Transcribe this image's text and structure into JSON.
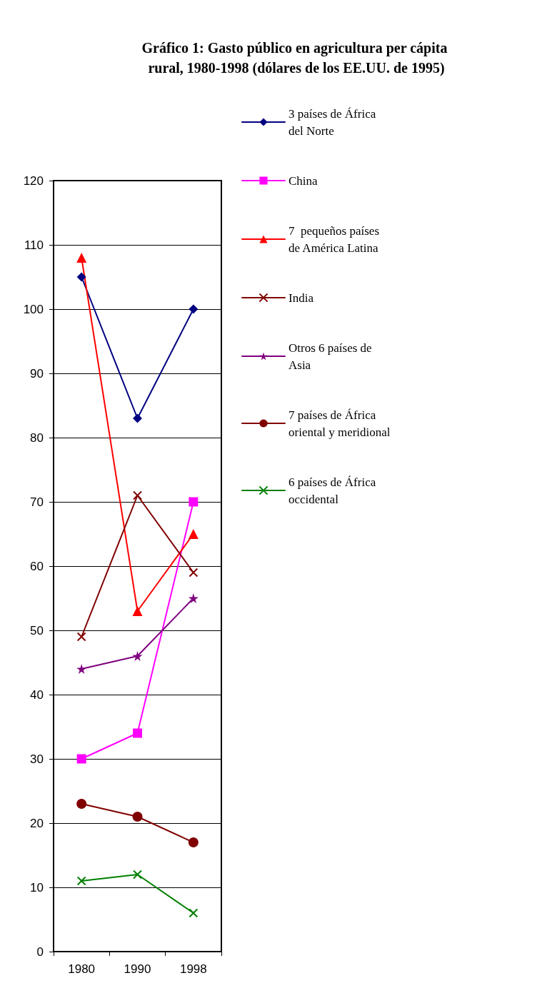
{
  "chart_data": {
    "type": "line",
    "title": "Gráfico 1: Gasto público en agricultura per cápita rural, 1980-1998 (dólares de los EE.UU. de 1995)",
    "categories": [
      "1980",
      "1990",
      "1998"
    ],
    "series": [
      {
        "name": "3 países de África del Norte",
        "color": "#000080",
        "marker": "diamond",
        "values": [
          105,
          83,
          100
        ]
      },
      {
        "name": "China",
        "color": "#ff00ff",
        "marker": "square",
        "values": [
          30,
          34,
          70
        ]
      },
      {
        "name": "7  pequeños países de América Latina",
        "color": "#ff0000",
        "marker": "triangle",
        "values": [
          108,
          53,
          65
        ]
      },
      {
        "name": "India",
        "color": "#800000",
        "marker": "cross",
        "values": [
          49,
          71,
          59
        ]
      },
      {
        "name": "Otros 6 países de Asia",
        "color": "#800080",
        "marker": "star",
        "values": [
          44,
          46,
          55
        ]
      },
      {
        "name": "7 países de África oriental y meridional",
        "color": "#800000",
        "marker": "circle",
        "values": [
          23,
          21,
          17
        ]
      },
      {
        "name": "6 países de África occidental",
        "color": "#008000",
        "marker": "cross",
        "values": [
          11,
          12,
          6
        ]
      }
    ],
    "ylim": [
      0,
      120
    ],
    "yticks": [
      0,
      10,
      20,
      30,
      40,
      50,
      60,
      70,
      80,
      90,
      100,
      110,
      120
    ],
    "grid": "y",
    "legend": "right",
    "line_style": "solid"
  }
}
